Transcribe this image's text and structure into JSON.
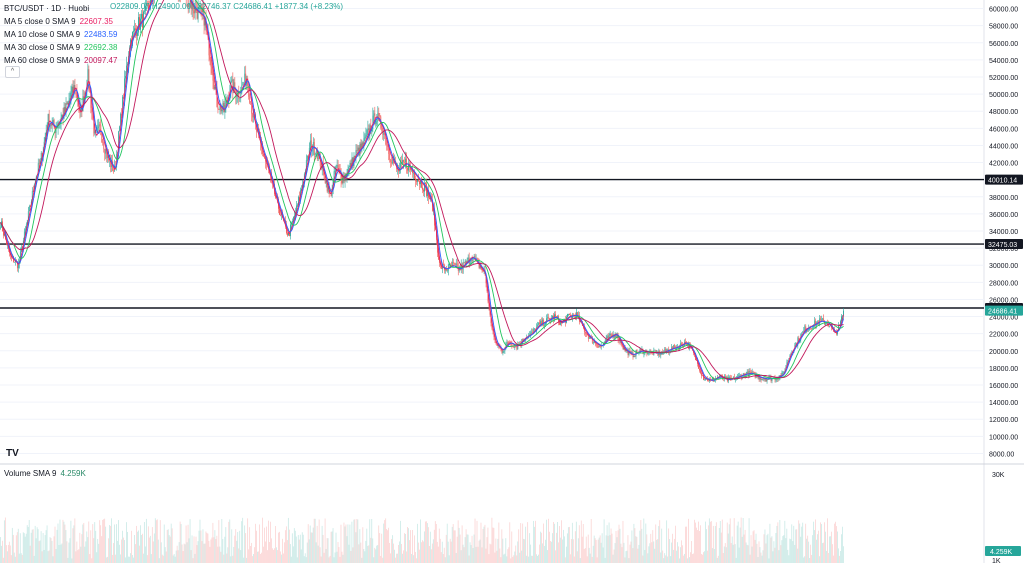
{
  "header": {
    "symbol": "BTC/USDT · 1D · Huobi",
    "ohlc_text": "O22809.07 H24900.00 L22746.37 C24686.41 +1877.34 (+8.23%)",
    "collapse_symbol": "^"
  },
  "indicators": [
    {
      "label": "MA 5 close 0 SMA 9",
      "value": "22607.35",
      "color": "#e91e63"
    },
    {
      "label": "MA 10 close 0 SMA 9",
      "value": "22483.59",
      "color": "#2962ff"
    },
    {
      "label": "MA 30 close 0 SMA 9",
      "value": "22692.38",
      "color": "#22c55e"
    },
    {
      "label": "MA 60 close 0 SMA 9",
      "value": "20097.47",
      "color": "#c2185b"
    }
  ],
  "volume_legend": {
    "label": "Volume SMA 9",
    "value": "4.259K"
  },
  "logo_text": "TV",
  "colors": {
    "up": "#26a69a",
    "down": "#ef5350",
    "axis_text": "#131722",
    "grid": "#f0f3fa"
  },
  "chart_data": {
    "type": "candlestick",
    "symbol": "BTC/USDT",
    "interval": "1D",
    "exchange": "Huobi",
    "ylim": [
      7000,
      61000
    ],
    "y_ticks": [
      8000,
      10000,
      12000,
      14000,
      16000,
      18000,
      20000,
      22000,
      24000,
      26000,
      28000,
      30000,
      32000,
      34000,
      36000,
      38000,
      40000,
      42000,
      44000,
      46000,
      48000,
      50000,
      52000,
      54000,
      56000,
      58000,
      60000
    ],
    "y_tick_labels": [
      "8000.00",
      "10000.00",
      "12000.00",
      "14000.00",
      "16000.00",
      "18000.00",
      "20000.00",
      "22000.00",
      "24000.00",
      "26000.00",
      "28000.00",
      "30000.00",
      "32000.00",
      "34000.00",
      "36000.00",
      "38000.00",
      "40000.00",
      "42000.00",
      "44000.00",
      "46000.00",
      "48000.00",
      "50000.00",
      "52000.00",
      "54000.00",
      "56000.00",
      "58000.00",
      "60000.00"
    ],
    "horizontal_lines": [
      {
        "value": 40010.14,
        "label": "40010.14"
      },
      {
        "value": 32475.03,
        "label": "32475.03"
      },
      {
        "value": 25000,
        "label": "25000.00"
      }
    ],
    "last_price": {
      "value": 24686.41,
      "label": "24686.41"
    },
    "price_path": [
      [
        0,
        35000
      ],
      [
        10,
        31000
      ],
      [
        18,
        30000
      ],
      [
        25,
        34000
      ],
      [
        35,
        40000
      ],
      [
        42,
        43000
      ],
      [
        48,
        47000
      ],
      [
        55,
        46000
      ],
      [
        65,
        48000
      ],
      [
        75,
        51000
      ],
      [
        80,
        47500
      ],
      [
        88,
        52000
      ],
      [
        95,
        45000
      ],
      [
        100,
        46000
      ],
      [
        108,
        42500
      ],
      [
        115,
        41000
      ],
      [
        122,
        48000
      ],
      [
        130,
        56000
      ],
      [
        138,
        58000
      ],
      [
        145,
        59000
      ],
      [
        155,
        62000
      ],
      [
        165,
        64000
      ],
      [
        175,
        63000
      ],
      [
        185,
        62000
      ],
      [
        195,
        60000
      ],
      [
        205,
        59000
      ],
      [
        212,
        54000
      ],
      [
        218,
        49000
      ],
      [
        225,
        48000
      ],
      [
        232,
        51000
      ],
      [
        240,
        50000
      ],
      [
        248,
        52000
      ],
      [
        255,
        47000
      ],
      [
        262,
        44000
      ],
      [
        270,
        41000
      ],
      [
        278,
        37500
      ],
      [
        285,
        35000
      ],
      [
        290,
        33500
      ],
      [
        298,
        36500
      ],
      [
        305,
        40000
      ],
      [
        312,
        44000
      ],
      [
        318,
        43500
      ],
      [
        325,
        41000
      ],
      [
        332,
        38000
      ],
      [
        338,
        41500
      ],
      [
        345,
        40000
      ],
      [
        352,
        41500
      ],
      [
        358,
        43000
      ],
      [
        365,
        44000
      ],
      [
        372,
        46000
      ],
      [
        378,
        47500
      ],
      [
        385,
        46000
      ],
      [
        392,
        43000
      ],
      [
        400,
        41000
      ],
      [
        408,
        42000
      ],
      [
        418,
        40500
      ],
      [
        428,
        39000
      ],
      [
        435,
        37000
      ],
      [
        442,
        30000
      ],
      [
        448,
        29500
      ],
      [
        455,
        30000
      ],
      [
        462,
        29500
      ],
      [
        468,
        30200
      ],
      [
        475,
        31000
      ],
      [
        482,
        30000
      ],
      [
        488,
        29000
      ],
      [
        493,
        24000
      ],
      [
        498,
        21000
      ],
      [
        505,
        20000
      ],
      [
        512,
        21000
      ],
      [
        520,
        20500
      ],
      [
        528,
        21500
      ],
      [
        535,
        22000
      ],
      [
        542,
        23000
      ],
      [
        550,
        23500
      ],
      [
        558,
        24000
      ],
      [
        565,
        23200
      ],
      [
        572,
        24000
      ],
      [
        580,
        24200
      ],
      [
        590,
        22000
      ],
      [
        598,
        21000
      ],
      [
        605,
        20500
      ],
      [
        612,
        21500
      ],
      [
        620,
        22000
      ],
      [
        628,
        20200
      ],
      [
        636,
        19500
      ],
      [
        645,
        20000
      ],
      [
        655,
        19800
      ],
      [
        665,
        19700
      ],
      [
        675,
        20200
      ],
      [
        683,
        20500
      ],
      [
        690,
        21000
      ],
      [
        696,
        20200
      ],
      [
        702,
        18500
      ],
      [
        708,
        16800
      ],
      [
        716,
        16500
      ],
      [
        724,
        17000
      ],
      [
        732,
        16600
      ],
      [
        740,
        16800
      ],
      [
        748,
        17200
      ],
      [
        756,
        17400
      ],
      [
        764,
        16900
      ],
      [
        772,
        16700
      ],
      [
        780,
        16800
      ],
      [
        788,
        17200
      ],
      [
        795,
        19500
      ],
      [
        802,
        21000
      ],
      [
        810,
        22500
      ],
      [
        818,
        23000
      ],
      [
        826,
        23500
      ],
      [
        834,
        23200
      ],
      [
        840,
        22000
      ],
      [
        845,
        22800
      ],
      [
        849,
        24686
      ]
    ],
    "ma_series": [
      {
        "name": "MA 5",
        "color": "#e91e63",
        "period": 3,
        "offset": 0
      },
      {
        "name": "MA 10",
        "color": "#2962ff",
        "period": 5,
        "offset": 0
      },
      {
        "name": "MA 30",
        "color": "#22c55e",
        "period": 14,
        "offset": 0
      },
      {
        "name": "MA 60",
        "color": "#c2185b",
        "period": 26,
        "offset": 0
      }
    ],
    "volume": {
      "ylim": [
        0,
        30000
      ],
      "y_ticks": [
        30000,
        1000
      ],
      "y_tick_labels": [
        "30K",
        "1K"
      ],
      "last_label": "4.259K"
    }
  }
}
